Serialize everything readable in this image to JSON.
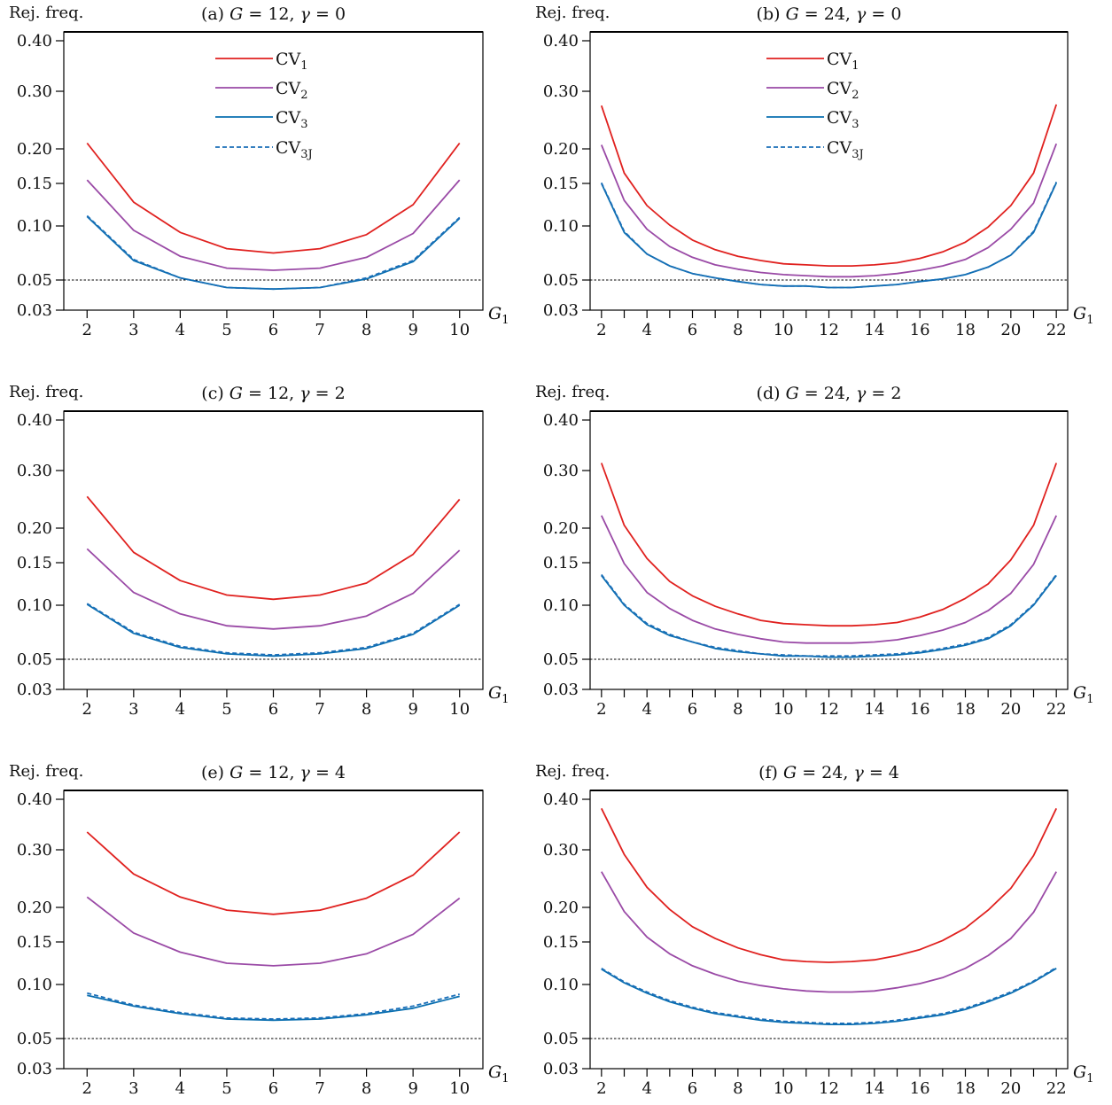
{
  "colors": {
    "CV1": "#e0211f",
    "CV2": "#9a4aa6",
    "CV3": "#0a6fb0",
    "CV3J": "#1a6eb8",
    "reference": "#000000"
  },
  "chart_data": [
    {
      "type": "line",
      "title": "(a) G = 12, γ = 0",
      "ylabel": "Rej. freq.",
      "xlabel": "G1",
      "yscale": "transformed (tick spacing non-linear)",
      "yticks": [
        0.03,
        0.05,
        0.1,
        0.15,
        0.2,
        0.3,
        0.4
      ],
      "ytick_labels": [
        "0.03",
        "0.05",
        "0.10",
        "0.15",
        "0.20",
        "0.30",
        "0.40"
      ],
      "xlim": [
        1.5,
        10.5
      ],
      "xticks": [
        2,
        3,
        4,
        5,
        6,
        7,
        8,
        9,
        10
      ],
      "xtick_labels": [
        "2",
        "3",
        "4",
        "5",
        "6",
        "7",
        "8",
        "9",
        "10"
      ],
      "reference_line": 0.05,
      "legend": "top-center",
      "legend_labels": {
        "CV1": "CV",
        "CV1_sub": "1",
        "CV2": "CV",
        "CV2_sub": "2",
        "CV3": "CV",
        "CV3_sub": "3",
        "CV3J": "CV",
        "CV3J_sub": "3J"
      },
      "x": [
        2,
        3,
        4,
        5,
        6,
        7,
        8,
        9,
        10
      ],
      "series": [
        {
          "key": "CV1",
          "style": "solid",
          "values": [
            0.21,
            0.128,
            0.094,
            0.079,
            0.075,
            0.079,
            0.092,
            0.125,
            0.21
          ]
        },
        {
          "key": "CV2",
          "style": "solid",
          "values": [
            0.155,
            0.096,
            0.072,
            0.061,
            0.059,
            0.061,
            0.071,
            0.093,
            0.155
          ]
        },
        {
          "key": "CV3",
          "style": "solid",
          "values": [
            0.111,
            0.068,
            0.052,
            0.045,
            0.044,
            0.045,
            0.051,
            0.067,
            0.109
          ]
        },
        {
          "key": "CV3J",
          "style": "dashed",
          "values": [
            0.112,
            0.069,
            0.052,
            0.045,
            0.044,
            0.045,
            0.052,
            0.068,
            0.11
          ]
        }
      ]
    },
    {
      "type": "line",
      "title": "(b) G = 24, γ = 0",
      "ylabel": "Rej. freq.",
      "xlabel": "G1",
      "yscale": "transformed (tick spacing non-linear)",
      "yticks": [
        0.03,
        0.05,
        0.1,
        0.15,
        0.2,
        0.3,
        0.4
      ],
      "ytick_labels": [
        "0.03",
        "0.05",
        "0.10",
        "0.15",
        "0.20",
        "0.30",
        "0.40"
      ],
      "xlim": [
        1.5,
        22.5
      ],
      "xticks": [
        2,
        3,
        4,
        5,
        6,
        7,
        8,
        9,
        10,
        11,
        12,
        13,
        14,
        15,
        16,
        17,
        18,
        19,
        20,
        21,
        22
      ],
      "xtick_labels": [
        "2",
        "",
        "4",
        "",
        "6",
        "",
        "8",
        "",
        "10",
        "",
        "12",
        "",
        "14",
        "",
        "16",
        "",
        "18",
        "",
        "20",
        "",
        "22"
      ],
      "reference_line": 0.05,
      "legend": "top-center",
      "legend_labels": {
        "CV1": "CV",
        "CV1_sub": "1",
        "CV2": "CV",
        "CV2_sub": "2",
        "CV3": "CV",
        "CV3_sub": "3",
        "CV3J": "CV",
        "CV3J_sub": "3J"
      },
      "x": [
        2,
        3,
        4,
        5,
        6,
        7,
        8,
        9,
        10,
        11,
        12,
        13,
        14,
        15,
        16,
        17,
        18,
        19,
        20,
        21,
        22
      ],
      "series": [
        {
          "key": "CV1",
          "style": "solid",
          "values": [
            0.275,
            0.165,
            0.124,
            0.101,
            0.087,
            0.078,
            0.072,
            0.068,
            0.065,
            0.064,
            0.063,
            0.063,
            0.064,
            0.066,
            0.07,
            0.076,
            0.085,
            0.099,
            0.124,
            0.165,
            0.277
          ]
        },
        {
          "key": "CV2",
          "style": "solid",
          "values": [
            0.207,
            0.13,
            0.097,
            0.081,
            0.071,
            0.064,
            0.06,
            0.057,
            0.055,
            0.054,
            0.053,
            0.053,
            0.054,
            0.056,
            0.059,
            0.063,
            0.069,
            0.08,
            0.097,
            0.127,
            0.209
          ]
        },
        {
          "key": "CV3",
          "style": "solid",
          "values": [
            0.15,
            0.094,
            0.074,
            0.063,
            0.056,
            0.052,
            0.049,
            0.047,
            0.046,
            0.046,
            0.045,
            0.045,
            0.046,
            0.047,
            0.049,
            0.051,
            0.055,
            0.062,
            0.073,
            0.094,
            0.151
          ]
        },
        {
          "key": "CV3J",
          "style": "dashed",
          "values": [
            0.151,
            0.095,
            0.074,
            0.063,
            0.056,
            0.052,
            0.049,
            0.047,
            0.046,
            0.046,
            0.045,
            0.045,
            0.046,
            0.047,
            0.049,
            0.051,
            0.055,
            0.062,
            0.073,
            0.095,
            0.152
          ]
        }
      ]
    },
    {
      "type": "line",
      "title": "(c) G = 12, γ = 2",
      "ylabel": "Rej. freq.",
      "xlabel": "G1",
      "yscale": "transformed (tick spacing non-linear)",
      "yticks": [
        0.03,
        0.05,
        0.1,
        0.15,
        0.2,
        0.3,
        0.4
      ],
      "ytick_labels": [
        "0.03",
        "0.05",
        "0.10",
        "0.15",
        "0.20",
        "0.30",
        "0.40"
      ],
      "xlim": [
        1.5,
        10.5
      ],
      "xticks": [
        2,
        3,
        4,
        5,
        6,
        7,
        8,
        9,
        10
      ],
      "xtick_labels": [
        "2",
        "3",
        "4",
        "5",
        "6",
        "7",
        "8",
        "9",
        "10"
      ],
      "reference_line": 0.05,
      "legend": "none",
      "x": [
        2,
        3,
        4,
        5,
        6,
        7,
        8,
        9,
        10
      ],
      "series": [
        {
          "key": "CV1",
          "style": "solid",
          "values": [
            0.255,
            0.165,
            0.129,
            0.112,
            0.107,
            0.112,
            0.126,
            0.162,
            0.25
          ]
        },
        {
          "key": "CV2",
          "style": "solid",
          "values": [
            0.17,
            0.115,
            0.092,
            0.081,
            0.078,
            0.081,
            0.09,
            0.114,
            0.168
          ]
        },
        {
          "key": "CV3",
          "style": "solid",
          "values": [
            0.101,
            0.074,
            0.061,
            0.055,
            0.053,
            0.055,
            0.06,
            0.073,
            0.1
          ]
        },
        {
          "key": "CV3J",
          "style": "dashed",
          "values": [
            0.102,
            0.075,
            0.062,
            0.056,
            0.054,
            0.056,
            0.061,
            0.074,
            0.101
          ]
        }
      ]
    },
    {
      "type": "line",
      "title": "(d) G = 24, γ = 2",
      "ylabel": "Rej. freq.",
      "xlabel": "G1",
      "yscale": "transformed (tick spacing non-linear)",
      "yticks": [
        0.03,
        0.05,
        0.1,
        0.15,
        0.2,
        0.3,
        0.4
      ],
      "ytick_labels": [
        "0.03",
        "0.05",
        "0.10",
        "0.15",
        "0.20",
        "0.30",
        "0.40"
      ],
      "xlim": [
        1.5,
        22.5
      ],
      "xticks": [
        2,
        3,
        4,
        5,
        6,
        7,
        8,
        9,
        10,
        11,
        12,
        13,
        14,
        15,
        16,
        17,
        18,
        19,
        20,
        21,
        22
      ],
      "xtick_labels": [
        "2",
        "",
        "4",
        "",
        "6",
        "",
        "8",
        "",
        "10",
        "",
        "12",
        "",
        "14",
        "",
        "16",
        "",
        "18",
        "",
        "20",
        "",
        "22"
      ],
      "reference_line": 0.05,
      "legend": "none",
      "x": [
        2,
        3,
        4,
        5,
        6,
        7,
        8,
        9,
        10,
        11,
        12,
        13,
        14,
        15,
        16,
        17,
        18,
        19,
        20,
        21,
        22
      ],
      "series": [
        {
          "key": "CV1",
          "style": "solid",
          "values": [
            0.315,
            0.205,
            0.156,
            0.128,
            0.111,
            0.099,
            0.092,
            0.086,
            0.083,
            0.082,
            0.081,
            0.081,
            0.082,
            0.084,
            0.089,
            0.096,
            0.108,
            0.125,
            0.154,
            0.205,
            0.315
          ]
        },
        {
          "key": "CV2",
          "style": "solid",
          "values": [
            0.222,
            0.149,
            0.115,
            0.097,
            0.086,
            0.078,
            0.073,
            0.069,
            0.066,
            0.065,
            0.065,
            0.065,
            0.066,
            0.068,
            0.072,
            0.077,
            0.084,
            0.095,
            0.114,
            0.148,
            0.222
          ]
        },
        {
          "key": "CV3",
          "style": "solid",
          "values": [
            0.135,
            0.1,
            0.082,
            0.072,
            0.066,
            0.06,
            0.057,
            0.055,
            0.053,
            0.053,
            0.052,
            0.052,
            0.053,
            0.054,
            0.056,
            0.059,
            0.063,
            0.069,
            0.081,
            0.1,
            0.135
          ]
        },
        {
          "key": "CV3J",
          "style": "dashed",
          "values": [
            0.136,
            0.101,
            0.083,
            0.073,
            0.066,
            0.061,
            0.058,
            0.055,
            0.054,
            0.053,
            0.053,
            0.053,
            0.054,
            0.055,
            0.057,
            0.06,
            0.064,
            0.07,
            0.082,
            0.101,
            0.136
          ]
        }
      ]
    },
    {
      "type": "line",
      "title": "(e) G = 12, γ = 4",
      "ylabel": "Rej. freq.",
      "xlabel": "G1",
      "yscale": "transformed (tick spacing non-linear)",
      "yticks": [
        0.03,
        0.05,
        0.1,
        0.15,
        0.2,
        0.3,
        0.4
      ],
      "ytick_labels": [
        "0.03",
        "0.05",
        "0.10",
        "0.15",
        "0.20",
        "0.30",
        "0.40"
      ],
      "xlim": [
        1.5,
        10.5
      ],
      "xticks": [
        2,
        3,
        4,
        5,
        6,
        7,
        8,
        9,
        10
      ],
      "xtick_labels": [
        "2",
        "3",
        "4",
        "5",
        "6",
        "7",
        "8",
        "9",
        "10"
      ],
      "reference_line": 0.05,
      "legend": "none",
      "x": [
        2,
        3,
        4,
        5,
        6,
        7,
        8,
        9,
        10
      ],
      "series": [
        {
          "key": "CV1",
          "style": "solid",
          "values": [
            0.335,
            0.258,
            0.218,
            0.196,
            0.19,
            0.196,
            0.216,
            0.256,
            0.335
          ]
        },
        {
          "key": "CV2",
          "style": "solid",
          "values": [
            0.218,
            0.163,
            0.138,
            0.125,
            0.122,
            0.125,
            0.136,
            0.161,
            0.216
          ]
        },
        {
          "key": "CV3",
          "style": "solid",
          "values": [
            0.09,
            0.08,
            0.073,
            0.068,
            0.067,
            0.068,
            0.072,
            0.078,
            0.089
          ]
        },
        {
          "key": "CV3J",
          "style": "dashed",
          "values": [
            0.092,
            0.081,
            0.074,
            0.069,
            0.068,
            0.069,
            0.073,
            0.08,
            0.091
          ]
        }
      ]
    },
    {
      "type": "line",
      "title": "(f) G = 24, γ = 4",
      "ylabel": "Rej. freq.",
      "xlabel": "G1",
      "yscale": "transformed (tick spacing non-linear)",
      "yticks": [
        0.03,
        0.05,
        0.1,
        0.15,
        0.2,
        0.3,
        0.4
      ],
      "ytick_labels": [
        "0.03",
        "0.05",
        "0.10",
        "0.15",
        "0.20",
        "0.30",
        "0.40"
      ],
      "xlim": [
        1.5,
        22.5
      ],
      "xticks": [
        2,
        3,
        4,
        5,
        6,
        7,
        8,
        9,
        10,
        11,
        12,
        13,
        14,
        15,
        16,
        17,
        18,
        19,
        20,
        21,
        22
      ],
      "xtick_labels": [
        "2",
        "",
        "4",
        "",
        "6",
        "",
        "8",
        "",
        "10",
        "",
        "12",
        "",
        "14",
        "",
        "16",
        "",
        "18",
        "",
        "20",
        "",
        "22"
      ],
      "reference_line": 0.05,
      "legend": "none",
      "x": [
        2,
        3,
        4,
        5,
        6,
        7,
        8,
        9,
        10,
        11,
        12,
        13,
        14,
        15,
        16,
        17,
        18,
        19,
        20,
        21,
        22
      ],
      "series": [
        {
          "key": "CV1",
          "style": "solid",
          "values": [
            0.382,
            0.292,
            0.235,
            0.197,
            0.172,
            0.155,
            0.143,
            0.135,
            0.129,
            0.127,
            0.126,
            0.127,
            0.129,
            0.134,
            0.141,
            0.152,
            0.17,
            0.196,
            0.233,
            0.29,
            0.382
          ]
        },
        {
          "key": "CV2",
          "style": "solid",
          "values": [
            0.262,
            0.194,
            0.157,
            0.136,
            0.122,
            0.112,
            0.104,
            0.099,
            0.096,
            0.094,
            0.093,
            0.093,
            0.094,
            0.097,
            0.101,
            0.108,
            0.119,
            0.134,
            0.155,
            0.193,
            0.262
          ]
        },
        {
          "key": "CV3",
          "style": "solid",
          "values": [
            0.118,
            0.102,
            0.092,
            0.084,
            0.078,
            0.073,
            0.07,
            0.067,
            0.065,
            0.064,
            0.063,
            0.063,
            0.064,
            0.066,
            0.069,
            0.072,
            0.077,
            0.084,
            0.092,
            0.103,
            0.119
          ]
        },
        {
          "key": "CV3J",
          "style": "dashed",
          "values": [
            0.119,
            0.103,
            0.093,
            0.085,
            0.079,
            0.074,
            0.071,
            0.068,
            0.066,
            0.065,
            0.064,
            0.064,
            0.065,
            0.067,
            0.07,
            0.073,
            0.078,
            0.085,
            0.093,
            0.104,
            0.12
          ]
        }
      ]
    }
  ]
}
